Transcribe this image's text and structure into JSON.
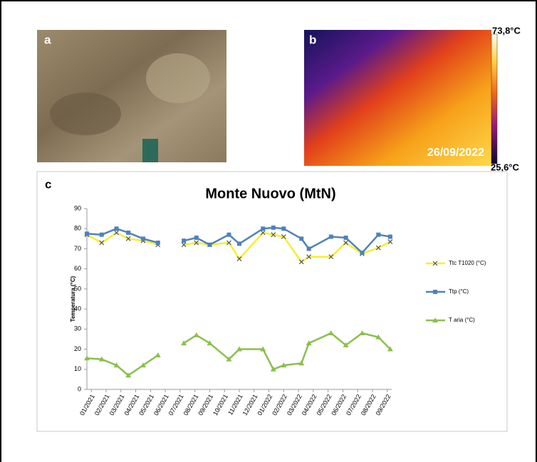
{
  "panel_labels": [
    "a",
    "b",
    "c"
  ],
  "thermal": {
    "max_label": "73,8°C",
    "min_label": "25,6°C",
    "date": "26/09/2022"
  },
  "chart_data": {
    "type": "line",
    "title": "Monte Nuovo (MtN)",
    "y_label": "Temperatura (°C)",
    "x": [
      -0.3,
      0.7,
      1.7,
      2.5,
      3.5,
      4.5,
      5.4,
      6.25,
      7.1,
      8.0,
      9.3,
      10.0,
      11.6,
      12.3,
      13.0,
      14.2,
      14.7,
      16.2,
      17.2,
      18.3,
      19.4,
      20.2
    ],
    "xlim": [
      -0.3,
      20.3
    ],
    "xticks": [
      {
        "value": 0,
        "label": "01/2021"
      },
      {
        "value": 1,
        "label": "02/2021"
      },
      {
        "value": 2,
        "label": "03/2021"
      },
      {
        "value": 3,
        "label": "04/2021"
      },
      {
        "value": 4,
        "label": "05/2021"
      },
      {
        "value": 5,
        "label": "06/2021"
      },
      {
        "value": 6,
        "label": "07/2021"
      },
      {
        "value": 7,
        "label": "08/2021"
      },
      {
        "value": 8,
        "label": "09/2021"
      },
      {
        "value": 9,
        "label": "10/2021"
      },
      {
        "value": 10,
        "label": "11/2021"
      },
      {
        "value": 11,
        "label": "12/2021"
      },
      {
        "value": 12,
        "label": "01/2022"
      },
      {
        "value": 13,
        "label": "02/2022"
      },
      {
        "value": 14,
        "label": "03/2022"
      },
      {
        "value": 15,
        "label": "04/2022"
      },
      {
        "value": 16,
        "label": "05/2022"
      },
      {
        "value": 17,
        "label": "06/2022"
      },
      {
        "value": 18,
        "label": "07/2022"
      },
      {
        "value": 19,
        "label": "08/2022"
      },
      {
        "value": 20,
        "label": "09/2022"
      }
    ],
    "ylim": [
      0,
      90
    ],
    "yticks": [
      0,
      10,
      20,
      30,
      40,
      50,
      60,
      70,
      80,
      90
    ],
    "grid": false,
    "series": [
      {
        "name": "Ttc T1020 (°C)",
        "color": "#f5f02a",
        "marker": "x",
        "values": [
          77,
          73,
          78,
          75,
          74,
          72,
          null,
          72,
          73,
          72,
          73,
          65,
          78,
          77,
          76,
          63.5,
          66,
          66,
          73,
          67.5,
          70.5,
          73.5
        ]
      },
      {
        "name": "Ttp (°C)",
        "color": "#4f81bd",
        "marker": "square",
        "values": [
          77.5,
          77,
          80,
          78,
          75,
          73,
          null,
          74,
          75.5,
          72,
          77,
          72.5,
          80,
          80.5,
          80,
          75,
          70,
          76,
          75.5,
          68,
          77,
          76
        ]
      },
      {
        "name": "T aria (°C)",
        "color": "#8cbf4e",
        "marker": "triangle",
        "values": [
          15.5,
          15,
          12,
          7,
          12,
          17,
          null,
          23,
          27,
          23,
          15,
          20,
          20,
          10,
          12,
          13,
          23,
          28,
          22,
          28,
          26,
          20
        ]
      }
    ]
  }
}
